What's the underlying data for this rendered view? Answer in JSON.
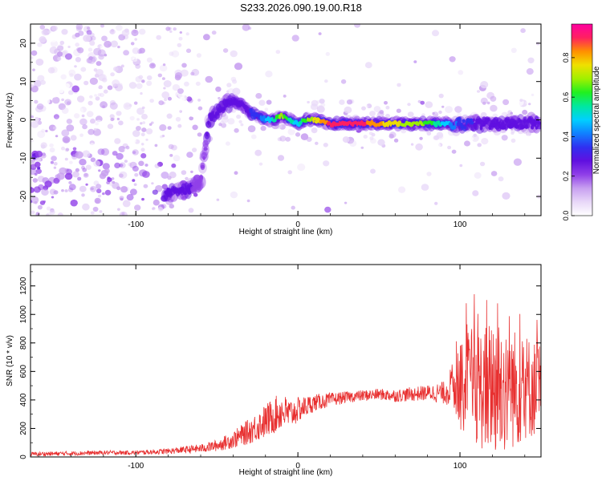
{
  "figure": {
    "title": "S233.2026.090.19.00.R18"
  },
  "colors": {
    "snr_line": "#e83030",
    "colormap": [
      "#ffffff",
      "#e8d8f8",
      "#c8a0f0",
      "#9040e8",
      "#6010e0",
      "#3030f0",
      "#1080ff",
      "#00d0ff",
      "#00e8a0",
      "#20f020",
      "#a0f000",
      "#f0e000",
      "#ff9000",
      "#ff2060",
      "#ff00a0"
    ]
  },
  "chart_data": [
    {
      "type": "heatmap",
      "xlabel": "Height of straight line (km)",
      "ylabel": "Frequency (Hz)",
      "xlim": [
        -165,
        150
      ],
      "ylim": [
        -25,
        25
      ],
      "xticks": [
        -100,
        0,
        100
      ],
      "yticks": [
        -20,
        -10,
        0,
        10,
        20
      ],
      "colorbar": {
        "label": "Normalized spectral amplitude",
        "range": [
          0,
          0.97
        ],
        "ticks": [
          "0.0",
          "0.2",
          "0.4",
          "0.6",
          "0.8"
        ]
      },
      "ridge": {
        "x": [
          -82,
          -75,
          -68,
          -60,
          -55,
          -50,
          -45,
          -40,
          -35,
          -30,
          -25,
          -20,
          -15,
          -10,
          -5,
          0,
          5,
          10,
          20,
          40,
          60,
          80,
          100,
          110,
          120,
          130,
          140,
          150
        ],
        "y": [
          -19,
          -19,
          -18,
          -17,
          0,
          2,
          4,
          5,
          4,
          2,
          1,
          0,
          0,
          1,
          0,
          -1,
          0,
          0,
          -1,
          -1,
          -1,
          -1,
          -1,
          -1,
          -1,
          -1,
          -1,
          -1
        ],
        "amplitude": [
          0.35,
          0.3,
          0.3,
          0.25,
          0.3,
          0.35,
          0.35,
          0.3,
          0.3,
          0.35,
          0.4,
          0.5,
          0.6,
          0.75,
          0.6,
          0.55,
          0.7,
          0.8,
          0.95,
          0.95,
          0.8,
          0.7,
          0.4,
          0.35,
          0.3,
          0.3,
          0.3,
          0.3
        ]
      }
    },
    {
      "type": "line",
      "xlabel": "Height of straight line (km)",
      "ylabel": "SNR (10 * v/v)",
      "xlim": [
        -165,
        150
      ],
      "ylim": [
        0,
        1350
      ],
      "xticks": [
        -100,
        0,
        100
      ],
      "yticks": [
        0,
        200,
        400,
        600,
        800,
        1000,
        1200
      ],
      "series": [
        {
          "x": [
            -165,
            -140,
            -120,
            -100,
            -80,
            -60,
            -50,
            -40,
            -30,
            -20,
            -15,
            -10,
            -5,
            0,
            10,
            20,
            30,
            40,
            50,
            60,
            70,
            80,
            90,
            95,
            100,
            105,
            110,
            115,
            120,
            125,
            130,
            135,
            140,
            145,
            150
          ],
          "y": [
            20,
            25,
            30,
            30,
            40,
            60,
            80,
            120,
            180,
            250,
            290,
            320,
            300,
            330,
            380,
            400,
            420,
            430,
            440,
            430,
            440,
            450,
            450,
            500,
            480,
            520,
            500,
            470,
            520,
            480,
            510,
            470,
            500,
            480,
            490
          ],
          "spread": [
            15,
            15,
            15,
            15,
            20,
            30,
            40,
            60,
            90,
            120,
            130,
            130,
            110,
            90,
            60,
            50,
            40,
            40,
            40,
            45,
            50,
            55,
            80,
            150,
            300,
            380,
            420,
            440,
            500,
            520,
            450,
            420,
            380,
            350,
            330
          ]
        }
      ]
    }
  ]
}
